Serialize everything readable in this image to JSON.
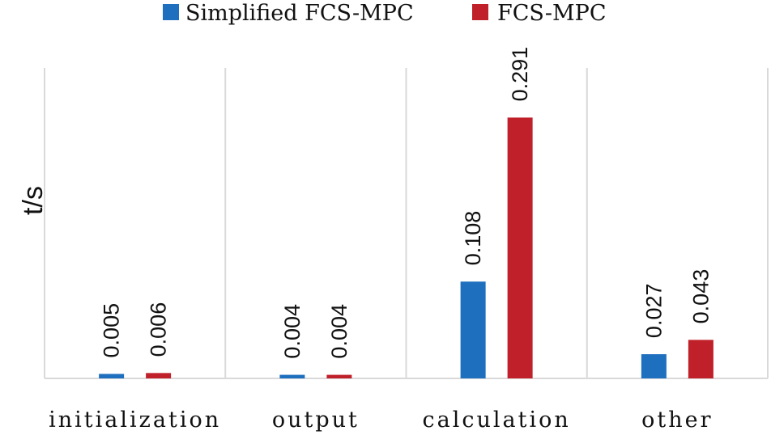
{
  "chart_data": {
    "type": "bar",
    "title": "",
    "xlabel": "",
    "ylabel": "t/s",
    "categories": [
      "initialization",
      "output",
      "calculation",
      "other"
    ],
    "series": [
      {
        "name": "Simplified FCS-MPC",
        "color": "#1f6fbf",
        "values": [
          0.005,
          0.004,
          0.108,
          0.027
        ],
        "labels": [
          "0.005",
          "0.004",
          "0.108",
          "0.027"
        ]
      },
      {
        "name": "FCS-MPC",
        "color": "#c0202a",
        "values": [
          0.006,
          0.004,
          0.291,
          0.043
        ],
        "labels": [
          "0.006",
          "0.004",
          "0.291",
          "0.043"
        ]
      }
    ],
    "ylim": [
      0,
      0.35
    ],
    "legend": "top-center",
    "grid": false
  }
}
